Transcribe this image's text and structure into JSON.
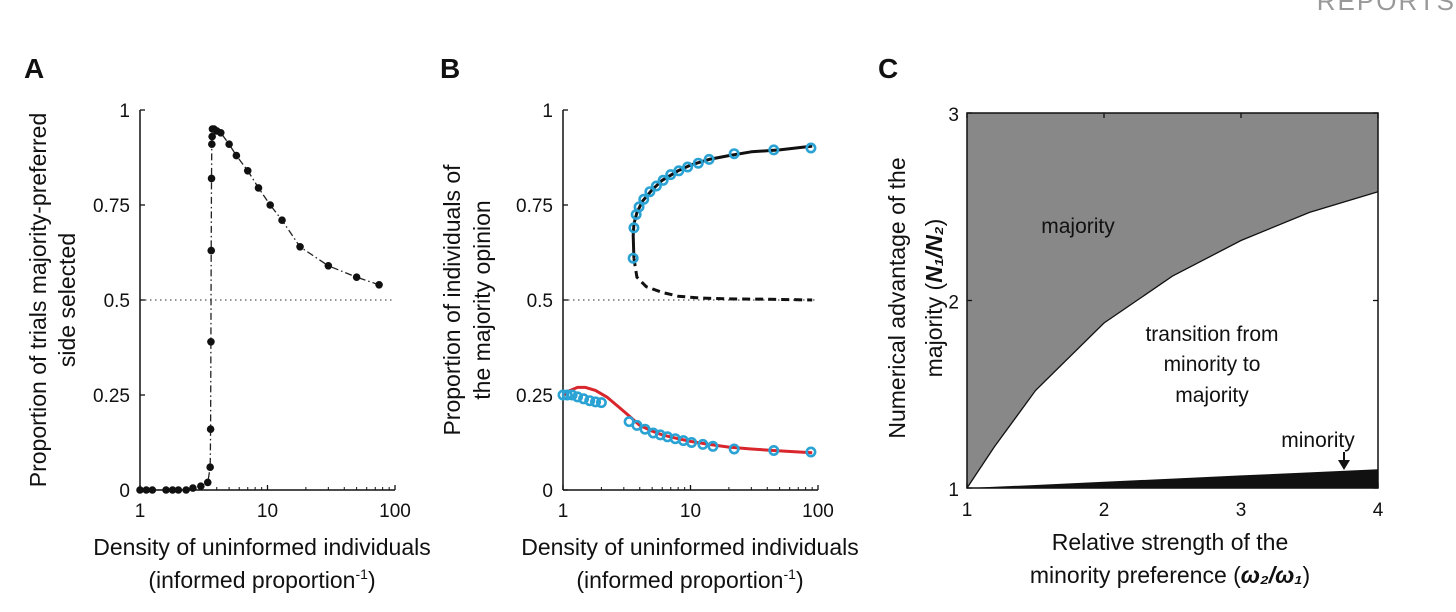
{
  "header": {
    "corner_text": "REPORTS"
  },
  "chart_data": [
    {
      "panel": "A",
      "type": "scatter",
      "xscale": "log",
      "xlim": [
        1,
        100
      ],
      "ylim": [
        0,
        1
      ],
      "xticks": [
        "1",
        "10",
        "100"
      ],
      "yticks": [
        "0",
        "0.25",
        "0.5",
        "0.75",
        "1"
      ],
      "xlabel": "Density of uninformed individuals",
      "xlabel2": "(informed proportion",
      "xlabel2_sup": "-1",
      "xlabel2_end": ")",
      "ylabel": "Proportion of trials majority-preferred",
      "ylabel2": "side selected",
      "reference_line_y": 0.5,
      "series": [
        {
          "marker": "filled-dot",
          "line": "dash-dot",
          "x": [
            1,
            1.12,
            1.25,
            1.6,
            1.8,
            2.0,
            2.3,
            2.6,
            3.0,
            3.4,
            3.55,
            3.58,
            3.6,
            3.62,
            3.64,
            3.66,
            3.68,
            3.7,
            3.8,
            4.0,
            4.3,
            5.0,
            5.7,
            7.0,
            8.5,
            10.5,
            13,
            18,
            30,
            50,
            75
          ],
          "y": [
            0,
            0,
            0,
            0,
            0,
            0,
            0,
            0.005,
            0.01,
            0.02,
            0.06,
            0.16,
            0.39,
            0.63,
            0.82,
            0.91,
            0.93,
            0.95,
            0.95,
            0.945,
            0.94,
            0.91,
            0.88,
            0.84,
            0.795,
            0.75,
            0.71,
            0.64,
            0.59,
            0.56,
            0.54
          ]
        }
      ]
    },
    {
      "panel": "B",
      "type": "line",
      "xscale": "log",
      "xlim": [
        1,
        100
      ],
      "ylim": [
        0,
        1
      ],
      "xticks": [
        "1",
        "10",
        "100"
      ],
      "yticks": [
        "0",
        "0.25",
        "0.5",
        "0.75",
        "1"
      ],
      "xlabel": "Density of uninformed individuals",
      "xlabel2": "(informed proportion",
      "xlabel2_sup": "-1",
      "xlabel2_end": ")",
      "ylabel": "Proportion of individuals of",
      "ylabel2": "the majority opinion",
      "reference_line_y": 0.5,
      "series": [
        {
          "style": "solid",
          "color": "#111111",
          "x": [
            3.6,
            3.55,
            3.6,
            3.8,
            4.2,
            5,
            6,
            8,
            10,
            14,
            20,
            30,
            50,
            90
          ],
          "y": [
            0.61,
            0.67,
            0.7,
            0.73,
            0.76,
            0.79,
            0.815,
            0.84,
            0.855,
            0.87,
            0.88,
            0.89,
            0.895,
            0.905
          ]
        },
        {
          "style": "dashed",
          "color": "#111111",
          "x": [
            3.6,
            3.8,
            4.5,
            6,
            8,
            12,
            20,
            40,
            90
          ],
          "y": [
            0.61,
            0.56,
            0.535,
            0.52,
            0.51,
            0.505,
            0.503,
            0.502,
            0.5
          ]
        },
        {
          "style": "solid",
          "color": "#d8262c",
          "x": [
            1,
            1.1,
            1.3,
            1.5,
            1.8,
            2.2,
            2.7,
            3.3,
            4,
            5,
            6,
            8,
            10,
            14,
            20,
            30,
            50,
            90
          ],
          "y": [
            0.25,
            0.26,
            0.27,
            0.27,
            0.262,
            0.245,
            0.22,
            0.195,
            0.17,
            0.155,
            0.145,
            0.135,
            0.128,
            0.12,
            0.113,
            0.108,
            0.103,
            0.098
          ]
        },
        {
          "style": "open-circle",
          "color": "#2aa3d4",
          "x": [
            3.55,
            3.6,
            3.75,
            3.95,
            4.3,
            4.8,
            5.4,
            6.1,
            7.0,
            8.1,
            9.5,
            11.5,
            14,
            22,
            45,
            88
          ],
          "y": [
            0.61,
            0.69,
            0.725,
            0.745,
            0.765,
            0.785,
            0.8,
            0.815,
            0.83,
            0.84,
            0.85,
            0.86,
            0.87,
            0.885,
            0.895,
            0.9
          ]
        },
        {
          "style": "open-circle",
          "color": "#2aa3d4",
          "x": [
            1,
            1.08,
            1.18,
            1.3,
            1.45,
            1.62,
            1.8,
            2.0,
            3.3,
            3.8,
            4.4,
            5.1,
            5.8,
            6.6,
            7.6,
            8.8,
            10.2,
            12.5,
            15,
            22,
            45,
            88
          ],
          "y": [
            0.25,
            0.25,
            0.25,
            0.245,
            0.24,
            0.235,
            0.232,
            0.23,
            0.18,
            0.17,
            0.16,
            0.15,
            0.145,
            0.14,
            0.135,
            0.13,
            0.125,
            0.12,
            0.115,
            0.108,
            0.104,
            0.1
          ]
        }
      ]
    },
    {
      "panel": "C",
      "type": "area",
      "xlim": [
        1,
        4
      ],
      "ylim": [
        1,
        3
      ],
      "xticks": [
        "1",
        "2",
        "3",
        "4"
      ],
      "yticks": [
        "1",
        "2",
        "3"
      ],
      "xlabel": "Relative strength of the",
      "xlabel2": "minority preference (",
      "xlabel2_math": "ω₂/ω₁",
      "xlabel2_end": ")",
      "ylabel": "Numerical advantage of the",
      "ylabel2": "majority (",
      "ylabel2_math": "N₁/N₂",
      "ylabel2_end": ")",
      "boundaries": [
        {
          "name": "majority boundary",
          "x": [
            1,
            1.2,
            1.5,
            2.0,
            2.5,
            3.0,
            3.5,
            4.0
          ],
          "y": [
            1.0,
            1.22,
            1.52,
            1.88,
            2.13,
            2.32,
            2.47,
            2.58
          ]
        },
        {
          "name": "minority boundary",
          "x": [
            1,
            1.5,
            2,
            2.5,
            3,
            3.5,
            4
          ],
          "y": [
            1.0,
            1.016,
            1.033,
            1.05,
            1.067,
            1.083,
            1.1
          ]
        }
      ],
      "region_labels": [
        {
          "text": "majority"
        },
        {
          "text": "transition from"
        },
        {
          "text": "minority to"
        },
        {
          "text": "majority"
        },
        {
          "text": "minority"
        }
      ],
      "colors": {
        "majority": "#888888",
        "transition": "#ffffff",
        "minority": "#111111"
      }
    }
  ]
}
